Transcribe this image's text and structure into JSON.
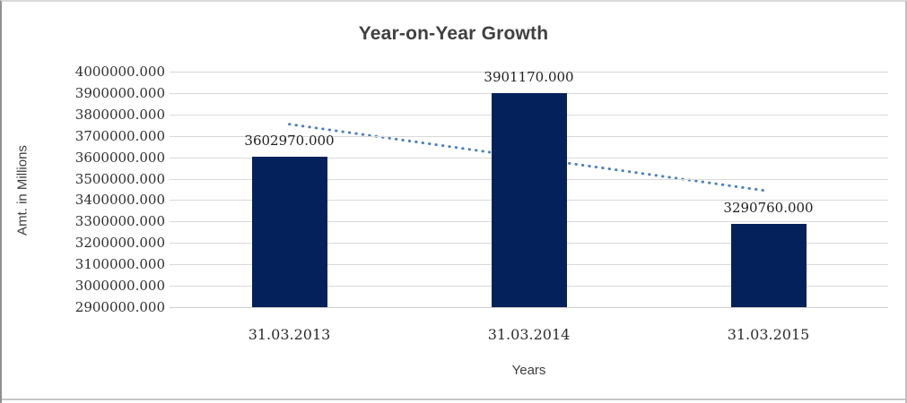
{
  "chart_data": {
    "type": "bar",
    "title": "Year-on-Year Growth",
    "xlabel": "Years",
    "ylabel": "Amt. in Millions",
    "categories": [
      "31.03.2013",
      "31.03.2014",
      "31.03.2015"
    ],
    "values": [
      3602970,
      3901170,
      3290760
    ],
    "data_labels": [
      "3602970.000",
      "3901170.000",
      "3290760.000"
    ],
    "y_tick_values": [
      4000000,
      3900000,
      3800000,
      3700000,
      3600000,
      3500000,
      3400000,
      3300000,
      3200000,
      3100000,
      3000000,
      2900000
    ],
    "y_tick_labels": [
      "4000000.000",
      "3900000.000",
      "3800000.000",
      "3700000.000",
      "3600000.000",
      "3500000.000",
      "3400000.000",
      "3300000.000",
      "3200000.000",
      "3100000.000",
      "3000000.000",
      "2900000.000"
    ],
    "ylim": [
      2900000,
      4000000
    ],
    "grid": true,
    "legend": "none",
    "trendline": {
      "type": "linear",
      "style": "dotted",
      "color": "#4F81BD"
    },
    "colors": {
      "bar": "#04215C",
      "gridline": "#D9D9D9",
      "tick_text": "#2E2E2E",
      "title_text": "#404040"
    }
  }
}
